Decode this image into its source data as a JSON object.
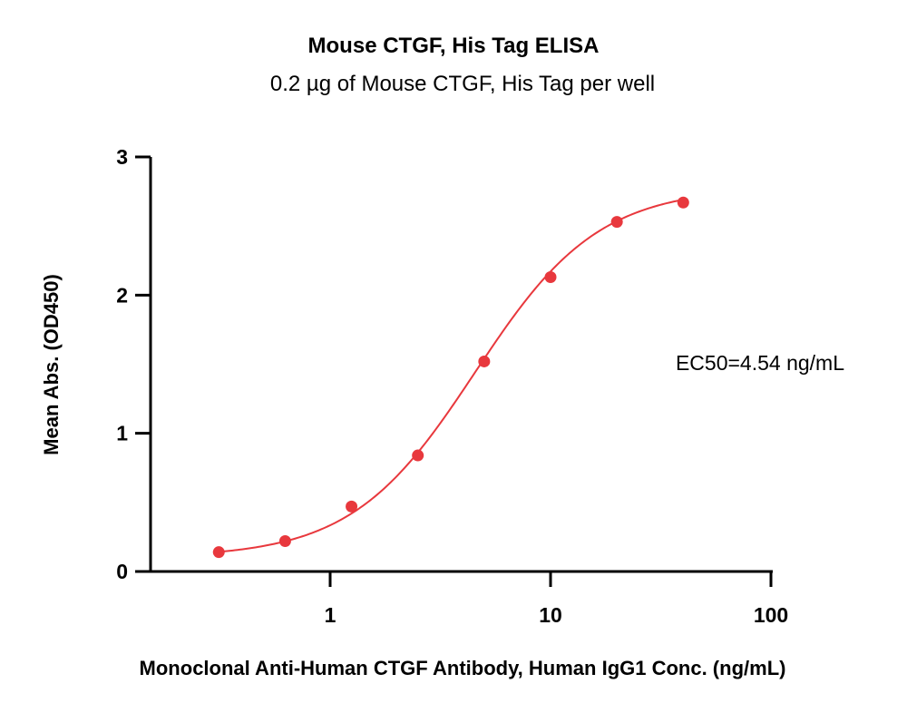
{
  "chart_data": {
    "type": "scatter",
    "title": "Mouse CTGF, His Tag ELISA",
    "subtitle": "0.2 µg of Mouse CTGF, His Tag per well",
    "xlabel": "Monoclonal Anti-Human CTGF Antibody, Human IgG1 Conc. (ng/mL)",
    "ylabel": "Mean Abs. (OD450)",
    "xscale": "log",
    "xlim": [
      0.15,
      100
    ],
    "ylim": [
      0,
      3
    ],
    "xticks": [
      {
        "value": 1,
        "label": "1"
      },
      {
        "value": 10,
        "label": "10"
      },
      {
        "value": 100,
        "label": "100"
      }
    ],
    "yticks": [
      {
        "value": 0,
        "label": "0"
      },
      {
        "value": 1,
        "label": "1"
      },
      {
        "value": 2,
        "label": "2"
      },
      {
        "value": 3,
        "label": "3"
      }
    ],
    "series": [
      {
        "x": [
          0.3125,
          0.625,
          1.25,
          2.5,
          5,
          10,
          20,
          40
        ],
        "y": [
          0.14,
          0.22,
          0.47,
          0.84,
          1.52,
          2.13,
          2.53,
          2.67
        ],
        "color": "#e8383d",
        "fit": "4PL"
      }
    ],
    "fit_params": {
      "bottom": 0.1,
      "top": 2.78,
      "ec50": 4.54,
      "hill": 1.55
    },
    "annotations": [
      {
        "text": "EC50=4.54 ng/mL"
      }
    ],
    "grid": false,
    "legend": "none"
  }
}
